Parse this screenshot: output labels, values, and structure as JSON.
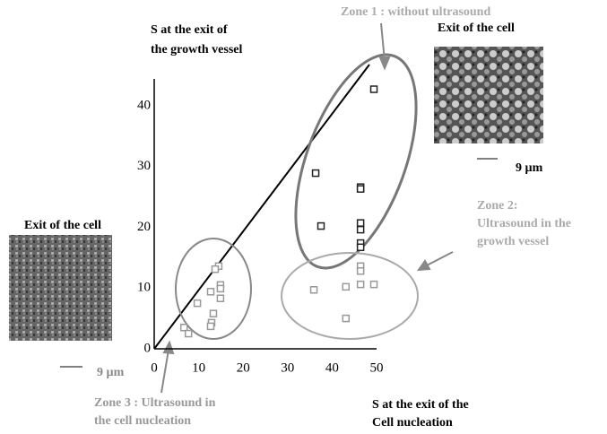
{
  "chart_data": {
    "type": "scatter",
    "y_label": [
      "S at the exit of",
      "the growth vessel"
    ],
    "x_label": [
      "S at the exit of the",
      "Cell nucleation"
    ],
    "annotations": [
      [
        "Zone 1 : without ultrasound"
      ],
      [
        "Exit of the cell"
      ],
      [
        "9 µm"
      ],
      [
        "Zone 2:",
        "Ultrasound in the",
        "growth vessel"
      ],
      [
        "Exit of the cell"
      ],
      [
        "9 µm"
      ],
      [
        "Zone 3 : Ultrasound in",
        "the cell nucleation"
      ]
    ],
    "xlim": [
      0,
      50
    ],
    "xticks": [
      0,
      10,
      20,
      30,
      40,
      50
    ],
    "ylim": [
      0,
      44.4
    ],
    "yticks": [
      0,
      10,
      20,
      30,
      40
    ],
    "grid": false,
    "series": [
      {
        "color": "#222222",
        "x": [
          36.3,
          49.4,
          46.4,
          46.4,
          37.5,
          46.4,
          46.4,
          46.4,
          46.4
        ],
        "values": [
          28.9,
          42.7,
          26.6,
          26.3,
          20.2,
          20.7,
          19.6,
          17.4,
          16.7
        ]
      },
      {
        "color": "#999999",
        "x": [
          35.9,
          43.1,
          46.4,
          49.4,
          43.1,
          46.4,
          46.4,
          6.7,
          7.7,
          9.7,
          12.7,
          13.3,
          12.9,
          12.7,
          14.5,
          14.9,
          14.9,
          14.9,
          13.7
        ],
        "values": [
          9.7,
          10.2,
          10.6,
          10.6,
          5.0,
          13.6,
          12.8,
          3.5,
          2.5,
          7.5,
          9.4,
          5.8,
          4.3,
          3.7,
          13.6,
          10.5,
          9.9,
          8.3,
          13.1
        ]
      }
    ]
  }
}
